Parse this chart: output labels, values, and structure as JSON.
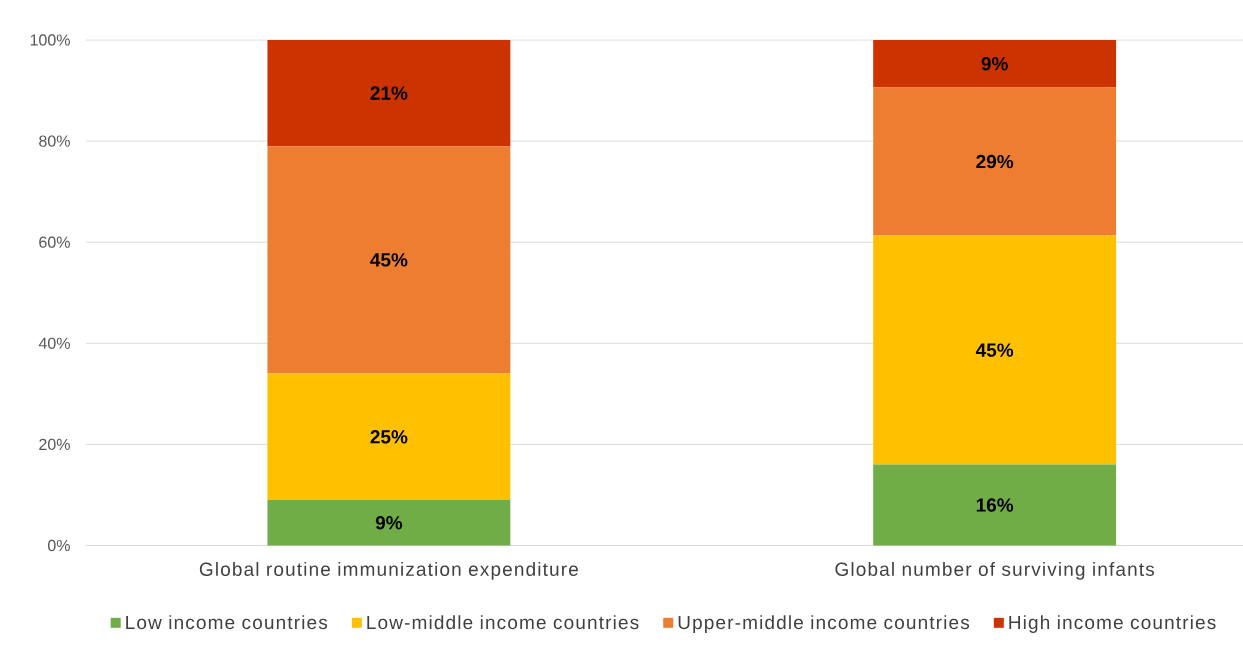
{
  "chart_data": {
    "type": "bar",
    "stacked": true,
    "categories": [
      "Global routine immunization expenditure",
      "Global number of surviving infants"
    ],
    "series": [
      {
        "name": "Low income countries",
        "color": "#70ad47",
        "values": [
          9,
          16
        ],
        "value_labels": [
          "9%",
          "16%"
        ]
      },
      {
        "name": "Low-middle income countries",
        "color": "#ffc000",
        "values": [
          25,
          45.3
        ],
        "value_labels": [
          "25%",
          "45%"
        ]
      },
      {
        "name": "Upper-middle income countries",
        "color": "#ed7d31",
        "values": [
          45,
          29.3
        ],
        "value_labels": [
          "45%",
          "29%"
        ]
      },
      {
        "name": "High income countries",
        "color": "#cc3300",
        "values": [
          21,
          9.4
        ],
        "value_labels": [
          "21%",
          "9%"
        ]
      }
    ],
    "ylim": [
      0,
      100
    ],
    "yticks": [
      {
        "value": 0,
        "label": "0%"
      },
      {
        "value": 20,
        "label": "20%"
      },
      {
        "value": 40,
        "label": "40%"
      },
      {
        "value": 60,
        "label": "60%"
      },
      {
        "value": 80,
        "label": "80%"
      },
      {
        "value": 100,
        "label": "100%"
      }
    ],
    "grid": "y",
    "legend": "bottom"
  }
}
